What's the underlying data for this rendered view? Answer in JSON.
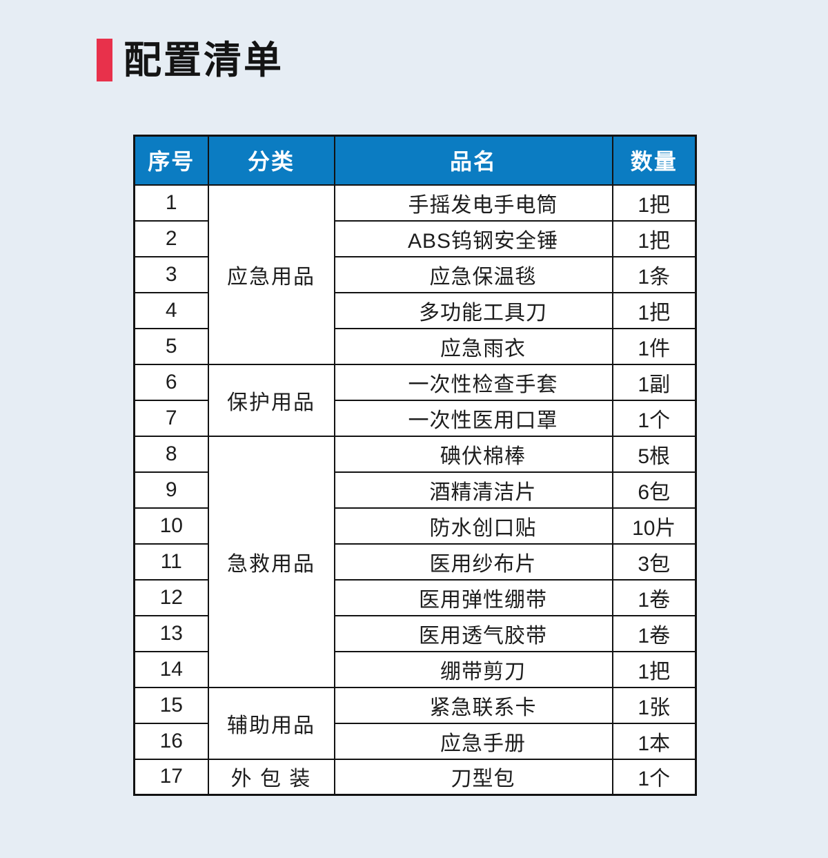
{
  "page": {
    "background_color": "#e6edf4"
  },
  "title": {
    "text": "配置清单",
    "accent_color": "#e8314b"
  },
  "table": {
    "header": {
      "background_color": "#0b7cc2",
      "text_color": "#ffffff",
      "columns": [
        "序号",
        "分类",
        "品名",
        "数量"
      ]
    },
    "zebra_green_color": "#d8ebde",
    "categories": [
      {
        "label": "应急用品",
        "start": 1,
        "span": 5
      },
      {
        "label": "保护用品",
        "start": 6,
        "span": 2
      },
      {
        "label": "急救用品",
        "start": 8,
        "span": 7
      },
      {
        "label": "辅助用品",
        "start": 15,
        "span": 2
      },
      {
        "label": "外 包 装",
        "start": 17,
        "span": 1
      }
    ],
    "rows": [
      {
        "no": "1",
        "name": "手摇发电手电筒",
        "qty": "1把"
      },
      {
        "no": "2",
        "name": "ABS钨钢安全锤",
        "qty": "1把"
      },
      {
        "no": "3",
        "name": "应急保温毯",
        "qty": "1条"
      },
      {
        "no": "4",
        "name": "多功能工具刀",
        "qty": "1把"
      },
      {
        "no": "5",
        "name": "应急雨衣",
        "qty": "1件"
      },
      {
        "no": "6",
        "name": "一次性检查手套",
        "qty": "1副"
      },
      {
        "no": "7",
        "name": "一次性医用口罩",
        "qty": "1个"
      },
      {
        "no": "8",
        "name": "碘伏棉棒",
        "qty": "5根"
      },
      {
        "no": "9",
        "name": "酒精清洁片",
        "qty": "6包"
      },
      {
        "no": "10",
        "name": "防水创口贴",
        "qty": "10片"
      },
      {
        "no": "11",
        "name": "医用纱布片",
        "qty": "3包"
      },
      {
        "no": "12",
        "name": "医用弹性绷带",
        "qty": "1卷"
      },
      {
        "no": "13",
        "name": "医用透气胶带",
        "qty": "1卷"
      },
      {
        "no": "14",
        "name": "绷带剪刀",
        "qty": "1把"
      },
      {
        "no": "15",
        "name": "紧急联系卡",
        "qty": "1张"
      },
      {
        "no": "16",
        "name": "应急手册",
        "qty": "1本"
      },
      {
        "no": "17",
        "name": "刀型包",
        "qty": "1个"
      }
    ]
  }
}
